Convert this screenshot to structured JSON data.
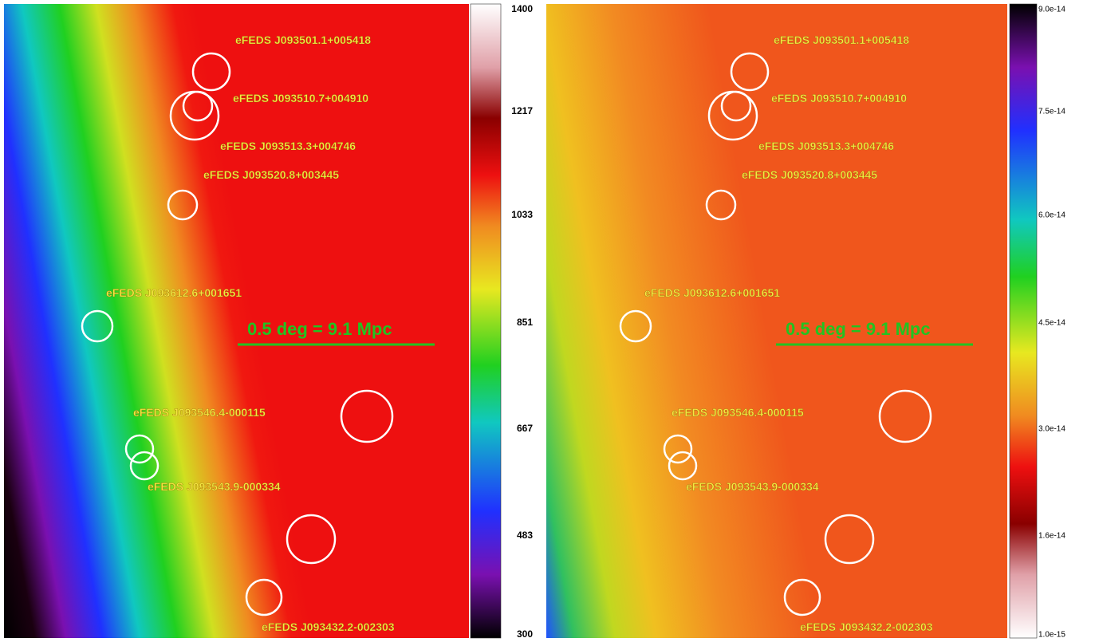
{
  "sources": [
    "eFEDS J093501.1+005418",
    "eFEDS J093510.7+004910",
    "eFEDS J093513.3+004746",
    "eFEDS J093520.8+003445",
    "eFEDS J093612.6+001651",
    "eFEDS J093546.4-000115",
    "eFEDS J093543.9-000334",
    "eFEDS J093432.2-002303"
  ],
  "scale_label": "0.5 deg = 9.1 Mpc",
  "colorbars": [
    {
      "ticks": [
        "1400",
        "1217",
        "1033",
        "851",
        "667",
        "483",
        "300"
      ]
    },
    {
      "ticks": [
        "9.0e-14",
        "7.5e-14",
        "6.0e-14",
        "4.5e-14",
        "3.0e-14",
        "1.6e-14",
        "1.0e-15"
      ]
    }
  ]
}
